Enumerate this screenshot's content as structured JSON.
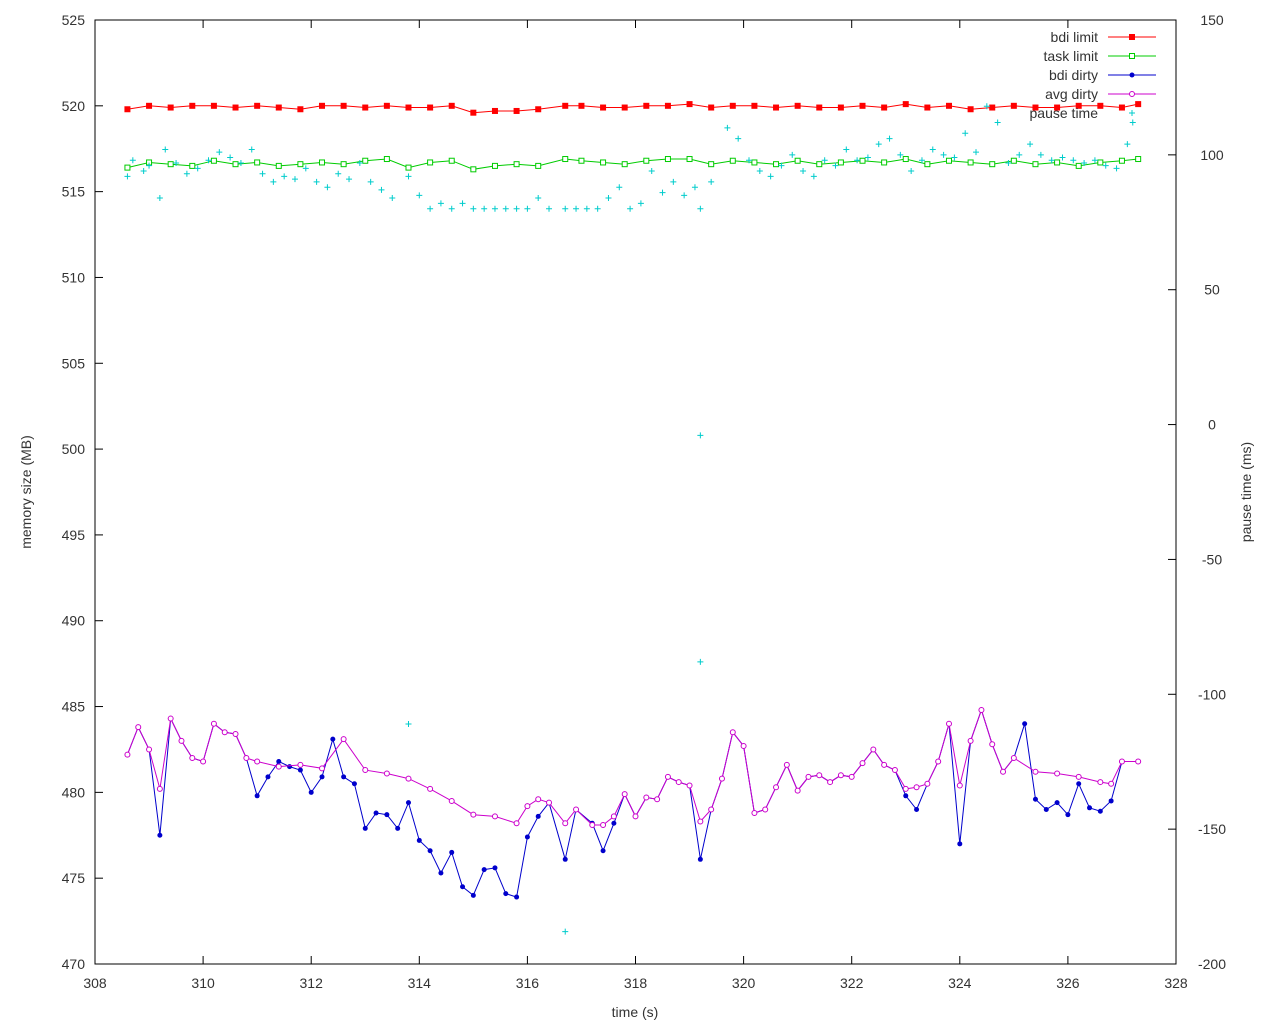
{
  "chart_data": {
    "type": "line",
    "xlabel": "time (s)",
    "ylabel": "memory size (MB)",
    "y2label": "pause time (ms)",
    "xlim": [
      308,
      328
    ],
    "ylim": [
      470,
      525
    ],
    "y2lim": [
      -200,
      150
    ],
    "xticks": [
      "308",
      "310",
      "312",
      "314",
      "316",
      "318",
      "320",
      "322",
      "324",
      "326",
      "328"
    ],
    "yticks": [
      "470",
      "475",
      "480",
      "485",
      "490",
      "495",
      "500",
      "505",
      "510",
      "515",
      "520",
      "525"
    ],
    "y2ticks": [
      "-200",
      "-150",
      "-100",
      "-50",
      "0",
      "50",
      "100",
      "150"
    ],
    "legend_position": "top-right",
    "grid": false,
    "series": [
      {
        "name": "bdi limit",
        "axis": "y",
        "color": "#ff0000",
        "marker": "filled-square",
        "x": [
          308.6,
          309.0,
          309.4,
          309.8,
          310.2,
          310.6,
          311.0,
          311.4,
          311.8,
          312.2,
          312.6,
          313.0,
          313.4,
          313.8,
          314.2,
          314.6,
          315.0,
          315.4,
          315.8,
          316.2,
          316.7,
          317.0,
          317.4,
          317.8,
          318.2,
          318.6,
          319.0,
          319.4,
          319.8,
          320.2,
          320.6,
          321.0,
          321.4,
          321.8,
          322.2,
          322.6,
          323.0,
          323.4,
          323.8,
          324.2,
          324.6,
          325.0,
          325.4,
          325.8,
          326.2,
          326.6,
          327.0,
          327.3
        ],
        "y": [
          519.8,
          520.0,
          519.9,
          520.0,
          520.0,
          519.9,
          520.0,
          519.9,
          519.8,
          520.0,
          520.0,
          519.9,
          520.0,
          519.9,
          519.9,
          520.0,
          519.6,
          519.7,
          519.7,
          519.8,
          520.0,
          520.0,
          519.9,
          519.9,
          520.0,
          520.0,
          520.1,
          519.9,
          520.0,
          520.0,
          519.9,
          520.0,
          519.9,
          519.9,
          520.0,
          519.9,
          520.1,
          519.9,
          520.0,
          519.8,
          519.9,
          520.0,
          519.9,
          519.9,
          520.0,
          520.0,
          519.9,
          520.1
        ]
      },
      {
        "name": "task limit",
        "axis": "y",
        "color": "#00cc00",
        "marker": "open-square",
        "x": [
          308.6,
          309.0,
          309.4,
          309.8,
          310.2,
          310.6,
          311.0,
          311.4,
          311.8,
          312.2,
          312.6,
          313.0,
          313.4,
          313.8,
          314.2,
          314.6,
          315.0,
          315.4,
          315.8,
          316.2,
          316.7,
          317.0,
          317.4,
          317.8,
          318.2,
          318.6,
          319.0,
          319.4,
          319.8,
          320.2,
          320.6,
          321.0,
          321.4,
          321.8,
          322.2,
          322.6,
          323.0,
          323.4,
          323.8,
          324.2,
          324.6,
          325.0,
          325.4,
          325.8,
          326.2,
          326.6,
          327.0,
          327.3
        ],
        "y": [
          516.4,
          516.7,
          516.6,
          516.5,
          516.8,
          516.6,
          516.7,
          516.5,
          516.6,
          516.7,
          516.6,
          516.8,
          516.9,
          516.4,
          516.7,
          516.8,
          516.3,
          516.5,
          516.6,
          516.5,
          516.9,
          516.8,
          516.7,
          516.6,
          516.8,
          516.9,
          516.9,
          516.6,
          516.8,
          516.7,
          516.6,
          516.8,
          516.6,
          516.7,
          516.8,
          516.7,
          516.9,
          516.6,
          516.8,
          516.7,
          516.6,
          516.8,
          516.6,
          516.7,
          516.5,
          516.7,
          516.8,
          516.9
        ]
      },
      {
        "name": "bdi dirty",
        "axis": "y",
        "color": "#0000cc",
        "marker": "filled-circle",
        "x": [
          308.6,
          308.8,
          309.0,
          309.2,
          309.4,
          309.6,
          309.8,
          310.0,
          310.2,
          310.4,
          310.6,
          310.8,
          311.0,
          311.2,
          311.4,
          311.6,
          311.8,
          312.0,
          312.2,
          312.4,
          312.6,
          312.8,
          313.0,
          313.2,
          313.4,
          313.6,
          313.8,
          314.0,
          314.2,
          314.4,
          314.6,
          314.8,
          315.0,
          315.2,
          315.4,
          315.6,
          315.8,
          316.0,
          316.2,
          316.4,
          316.7,
          316.9,
          317.2,
          317.4,
          317.6,
          317.8,
          318.0,
          318.2,
          318.4,
          318.6,
          318.8,
          319.0,
          319.2,
          319.4,
          319.6,
          319.8,
          320.0,
          320.2,
          320.4,
          320.6,
          320.8,
          321.0,
          321.2,
          321.4,
          321.6,
          321.8,
          322.0,
          322.2,
          322.4,
          322.6,
          322.8,
          323.0,
          323.2,
          323.4,
          323.6,
          323.8,
          324.0,
          324.2,
          324.4,
          324.6,
          324.8,
          325.0,
          325.2,
          325.4,
          325.6,
          325.8,
          326.0,
          326.2,
          326.4,
          326.6,
          326.8,
          327.0,
          327.3
        ],
        "y": [
          482.2,
          483.8,
          482.5,
          477.5,
          484.3,
          483.0,
          482.0,
          481.8,
          484.0,
          483.5,
          483.4,
          482.0,
          479.8,
          480.9,
          481.8,
          481.5,
          481.3,
          480.0,
          480.9,
          483.1,
          480.9,
          480.5,
          477.9,
          478.8,
          478.7,
          477.9,
          479.4,
          477.2,
          476.6,
          475.3,
          476.5,
          474.5,
          474.0,
          475.5,
          475.6,
          474.1,
          473.9,
          477.4,
          478.6,
          479.4,
          476.1,
          479.0,
          478.2,
          476.6,
          478.2,
          479.9,
          478.6,
          479.7,
          479.6,
          480.9,
          480.6,
          480.4,
          476.1,
          479.0,
          480.8,
          483.5,
          482.7,
          478.8,
          479.0,
          480.3,
          481.6,
          480.1,
          480.9,
          481.0,
          480.6,
          481.0,
          480.9,
          481.7,
          482.5,
          481.6,
          481.3,
          479.8,
          479.0,
          480.5,
          481.8,
          484.0,
          477.0,
          483.0,
          484.8,
          482.8,
          481.2,
          482.0,
          484.0,
          479.6,
          479.0,
          479.4,
          478.7,
          480.5,
          479.1,
          478.9,
          479.5,
          481.8,
          481.8
        ]
      },
      {
        "name": "avg dirty",
        "axis": "y",
        "color": "#cc00cc",
        "marker": "open-circle",
        "x": [
          308.6,
          308.8,
          309.0,
          309.2,
          309.4,
          309.6,
          309.8,
          310.0,
          310.2,
          310.4,
          310.6,
          310.8,
          311.0,
          311.4,
          311.8,
          312.2,
          312.6,
          313.0,
          313.4,
          313.8,
          314.2,
          314.6,
          315.0,
          315.4,
          315.8,
          316.0,
          316.2,
          316.4,
          316.7,
          316.9,
          317.2,
          317.4,
          317.6,
          317.8,
          318.0,
          318.2,
          318.4,
          318.6,
          318.8,
          319.0,
          319.2,
          319.4,
          319.6,
          319.8,
          320.0,
          320.2,
          320.4,
          320.6,
          320.8,
          321.0,
          321.2,
          321.4,
          321.6,
          321.8,
          322.0,
          322.2,
          322.4,
          322.6,
          322.8,
          323.0,
          323.2,
          323.4,
          323.6,
          323.8,
          324.0,
          324.2,
          324.4,
          324.6,
          324.8,
          325.0,
          325.4,
          325.8,
          326.2,
          326.6,
          326.8,
          327.0,
          327.3
        ],
        "y": [
          482.2,
          483.8,
          482.5,
          480.2,
          484.3,
          483.0,
          482.0,
          481.8,
          484.0,
          483.5,
          483.4,
          482.0,
          481.8,
          481.5,
          481.6,
          481.4,
          483.1,
          481.3,
          481.1,
          480.8,
          480.2,
          479.5,
          478.7,
          478.6,
          478.2,
          479.2,
          479.6,
          479.4,
          478.2,
          479.0,
          478.1,
          478.1,
          478.6,
          479.9,
          478.6,
          479.7,
          479.6,
          480.9,
          480.6,
          480.4,
          478.3,
          479.0,
          480.8,
          483.5,
          482.7,
          478.8,
          479.0,
          480.3,
          481.6,
          480.1,
          480.9,
          481.0,
          480.6,
          481.0,
          480.9,
          481.7,
          482.5,
          481.6,
          481.3,
          480.2,
          480.3,
          480.5,
          481.8,
          484.0,
          480.4,
          483.0,
          484.8,
          482.8,
          481.2,
          482.0,
          481.2,
          481.1,
          480.9,
          480.6,
          480.5,
          481.8,
          481.8
        ]
      },
      {
        "name": "pause time",
        "axis": "y2",
        "color": "#00cccc",
        "marker": "plus",
        "x": [
          308.6,
          308.7,
          308.9,
          309.0,
          309.2,
          309.3,
          309.5,
          309.7,
          309.9,
          310.1,
          310.3,
          310.5,
          310.7,
          310.9,
          311.1,
          311.3,
          311.5,
          311.7,
          311.9,
          312.1,
          312.3,
          312.5,
          312.7,
          312.9,
          313.1,
          313.3,
          313.5,
          313.8,
          314.0,
          314.2,
          314.4,
          314.6,
          314.8,
          315.0,
          315.2,
          315.4,
          315.6,
          315.8,
          316.0,
          316.2,
          316.4,
          316.7,
          316.9,
          317.1,
          317.3,
          317.5,
          317.7,
          317.9,
          318.1,
          318.3,
          318.5,
          318.7,
          318.9,
          319.1,
          319.2,
          319.2,
          319.2,
          319.4,
          319.7,
          319.9,
          320.1,
          320.3,
          320.5,
          320.7,
          320.9,
          321.1,
          321.3,
          321.5,
          321.7,
          321.9,
          322.1,
          322.3,
          322.5,
          322.7,
          322.9,
          323.1,
          323.3,
          323.5,
          323.7,
          323.9,
          324.1,
          324.3,
          324.5,
          324.7,
          324.9,
          325.1,
          325.3,
          325.5,
          325.7,
          325.9,
          326.1,
          326.3,
          326.5,
          326.7,
          326.9,
          327.1,
          327.2,
          313.8,
          316.7
        ],
        "y": [
          92,
          98,
          94,
          96,
          84,
          102,
          97,
          93,
          95,
          98,
          101,
          99,
          97,
          102,
          93,
          90,
          92,
          91,
          95,
          90,
          88,
          93,
          91,
          97,
          90,
          87,
          84,
          92,
          85,
          80,
          82,
          80,
          82,
          80,
          80,
          80,
          80,
          80,
          80,
          84,
          80,
          80,
          80,
          80,
          80,
          84,
          88,
          80,
          82,
          94,
          86,
          90,
          85,
          88,
          80,
          -4,
          -88,
          90,
          110,
          106,
          98,
          94,
          92,
          96,
          100,
          94,
          92,
          98,
          96,
          102,
          98,
          99,
          104,
          106,
          100,
          94,
          98,
          102,
          100,
          99,
          108,
          101,
          118,
          112,
          97,
          100,
          104,
          100,
          98,
          99,
          98,
          97,
          98,
          96,
          95,
          104,
          112,
          -111,
          -188
        ]
      }
    ]
  }
}
